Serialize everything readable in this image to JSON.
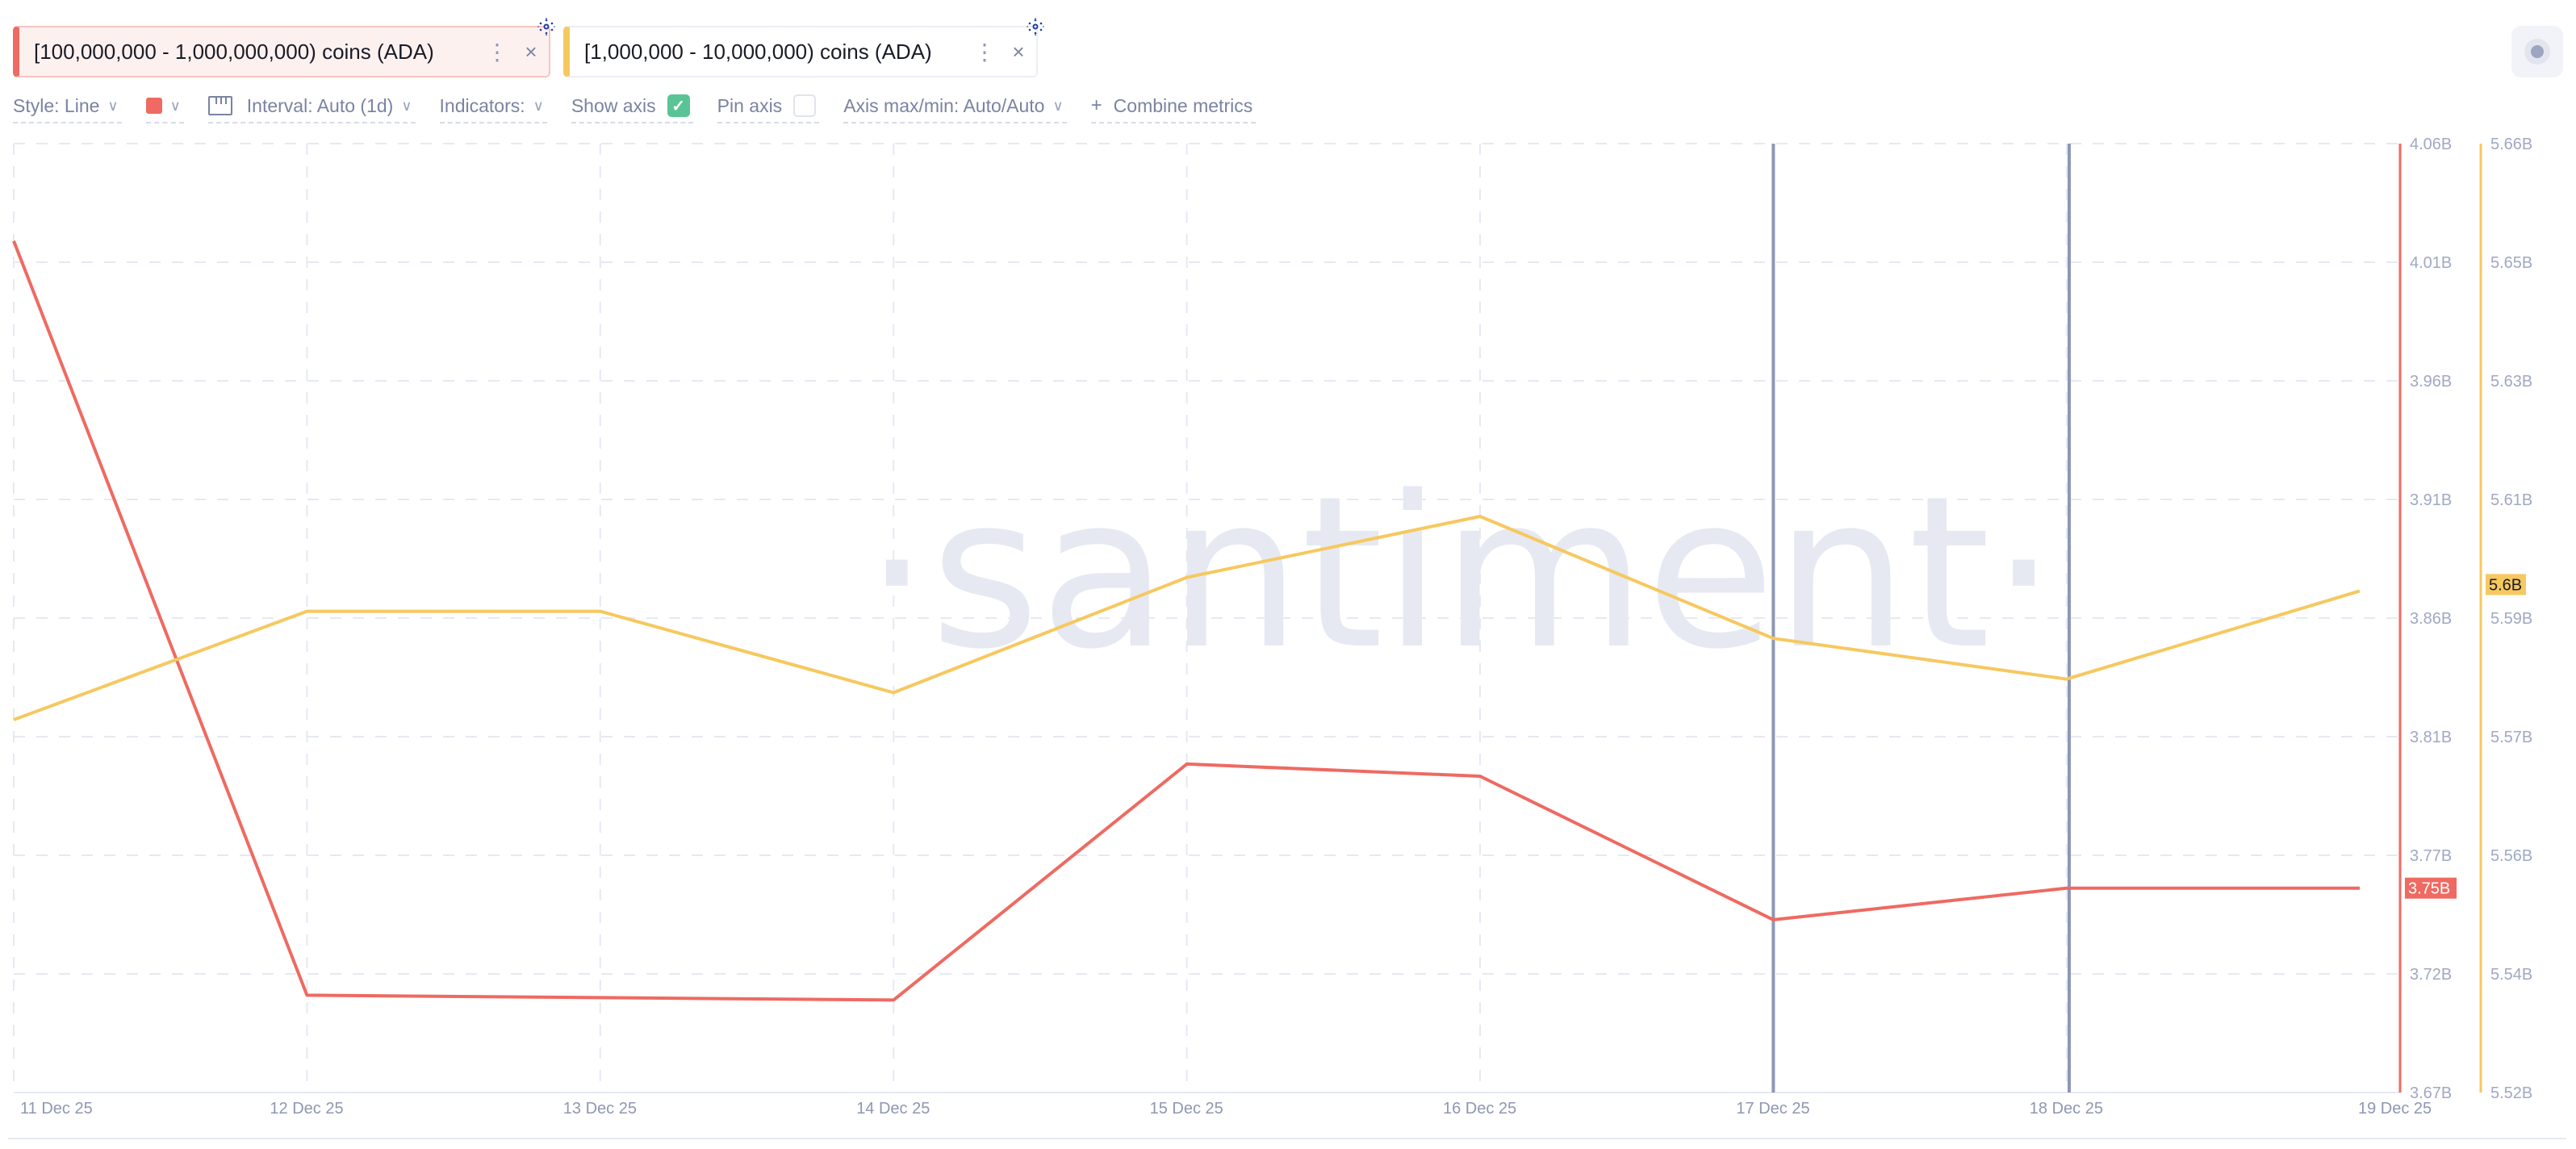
{
  "metrics": [
    {
      "label": "[100,000,000 - 1,000,000,000) coins (ADA)",
      "color": "#ee6a62",
      "menu_icon": "more-vertical-icon",
      "close_icon": "close-icon",
      "asset_icon": "cardano-icon"
    },
    {
      "label": "[1,000,000 - 10,000,000) coins (ADA)",
      "color": "#f6c85f",
      "menu_icon": "more-vertical-icon",
      "close_icon": "close-icon",
      "asset_icon": "cardano-icon"
    }
  ],
  "toolbar": {
    "style_label": "Style: Line",
    "color_value": "#ee6a62",
    "interval_label": "Interval: Auto (1d)",
    "indicators_label": "Indicators:",
    "show_axis_label": "Show axis",
    "show_axis_checked": true,
    "pin_axis_label": "Pin axis",
    "pin_axis_checked": false,
    "axis_minmax_label": "Axis max/min: Auto/Auto",
    "combine_label": "Combine metrics",
    "combine_icon": "+",
    "check_glyph": "✓",
    "chevron_glyph": "⌄"
  },
  "watermark": "·santiment·",
  "chart_data": {
    "type": "line",
    "title": "",
    "xlabel": "",
    "ylabel": "",
    "categories": [
      "11 Dec 25",
      "12 Dec 25",
      "13 Dec 25",
      "14 Dec 25",
      "15 Dec 25",
      "16 Dec 25",
      "17 Dec 25",
      "18 Dec 25",
      "19 Dec 25"
    ],
    "series": [
      {
        "name": "[100,000,000 - 1,000,000,000) coins (ADA)",
        "color": "#ee6a62",
        "axis": "right-1",
        "values": [
          4.02,
          3.71,
          3.709,
          3.708,
          3.805,
          3.8,
          3.741,
          3.754,
          3.754
        ],
        "unit": "B",
        "last_value_label": "3.75B"
      },
      {
        "name": "[1,000,000 - 10,000,000) coins (ADA)",
        "color": "#f6c85f",
        "axis": "right-2",
        "values": [
          5.575,
          5.591,
          5.591,
          5.579,
          5.596,
          5.605,
          5.587,
          5.581,
          5.594
        ],
        "unit": "B",
        "last_value_label": "5.6B"
      }
    ],
    "y_axes": [
      {
        "id": "right-1",
        "color": "#ee6a62",
        "ticks": [
          "4.06B",
          "4.01B",
          "3.96B",
          "3.91B",
          "3.86B",
          "3.81B",
          "3.77B",
          "3.72B",
          "3.67B"
        ],
        "ylim": [
          3.67,
          4.06
        ]
      },
      {
        "id": "right-2",
        "color": "#f6c85f",
        "ticks": [
          "5.66B",
          "5.65B",
          "5.63B",
          "5.61B",
          "5.59B",
          "5.57B",
          "5.56B",
          "5.54B",
          "5.52B"
        ],
        "ylim": [
          5.52,
          5.66
        ]
      }
    ],
    "vertical_markers": [
      "17 Dec 25",
      "18 Dec 25"
    ],
    "grid": true,
    "legend_position": "top"
  }
}
